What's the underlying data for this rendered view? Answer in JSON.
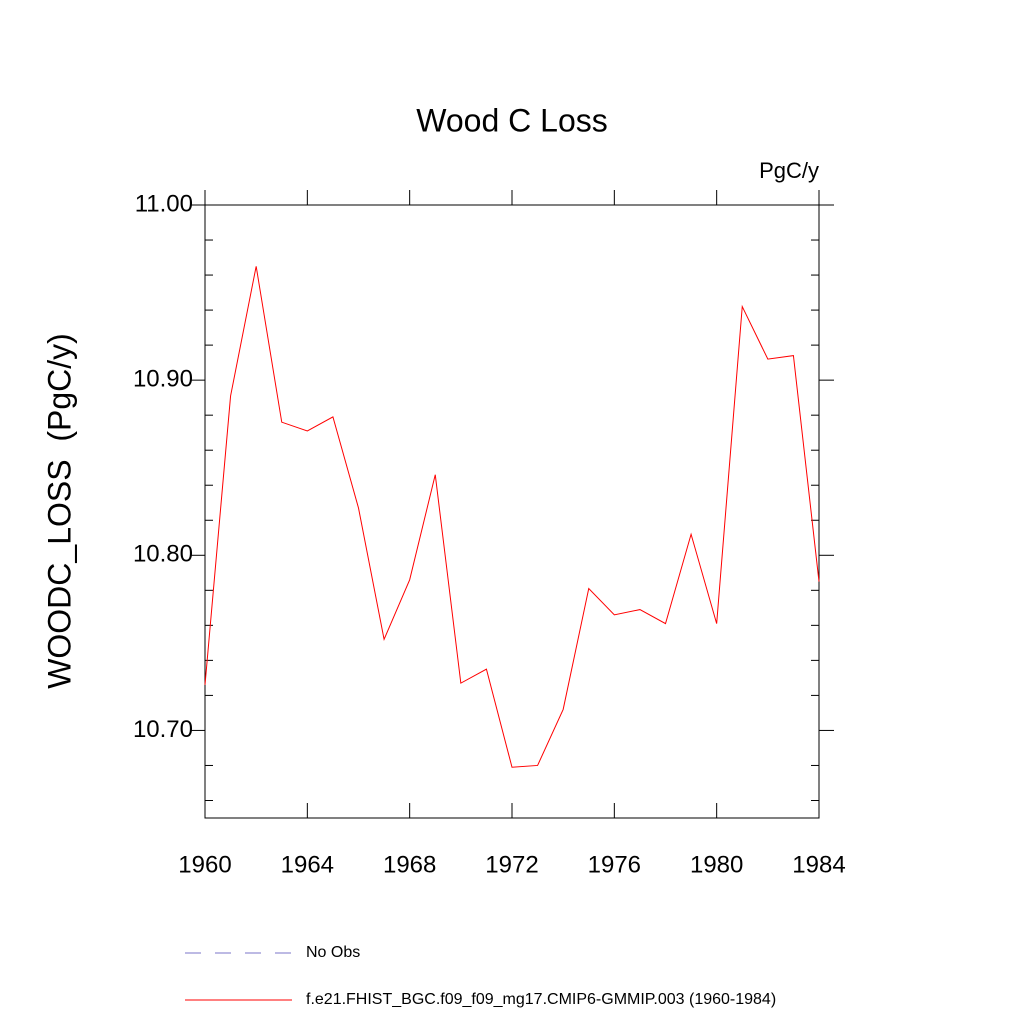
{
  "chart_data": {
    "type": "line",
    "title": "Wood C Loss",
    "units": "PgC/y",
    "y_label": "WOODC_LOSS  (PgC/y)",
    "x": [
      1960,
      1961,
      1962,
      1963,
      1964,
      1965,
      1966,
      1967,
      1968,
      1969,
      1970,
      1971,
      1972,
      1973,
      1974,
      1975,
      1976,
      1977,
      1978,
      1979,
      1980,
      1981,
      1982,
      1983,
      1984
    ],
    "series": [
      {
        "name": "f.e21.FHIST_BGC.f09_f09_mg17.CMIP6-GMMIP.003 (1960-1984)",
        "color": "#ff0000",
        "values": [
          10.726,
          10.891,
          10.965,
          10.876,
          10.871,
          10.879,
          10.827,
          10.752,
          10.786,
          10.846,
          10.727,
          10.735,
          10.679,
          10.68,
          10.712,
          10.781,
          10.766,
          10.769,
          10.761,
          10.812,
          10.761,
          10.942,
          10.912,
          10.914,
          10.785
        ]
      }
    ],
    "obs_label": "No Obs",
    "obs_color": "#7b74c8",
    "xlim": [
      1960,
      1984
    ],
    "xticks": [
      1960,
      1964,
      1968,
      1972,
      1976,
      1980,
      1984
    ],
    "ylim": [
      10.65,
      11.0
    ],
    "yticks": [
      {
        "value": 10.7,
        "label": "10.70"
      },
      {
        "value": 10.8,
        "label": "10.80"
      },
      {
        "value": 10.9,
        "label": "10.90"
      },
      {
        "value": 11.0,
        "label": "11.00"
      }
    ],
    "yminorticks": [
      10.66,
      10.68,
      10.72,
      10.74,
      10.76,
      10.78,
      10.82,
      10.84,
      10.86,
      10.88,
      10.92,
      10.94,
      10.96,
      10.98
    ]
  }
}
